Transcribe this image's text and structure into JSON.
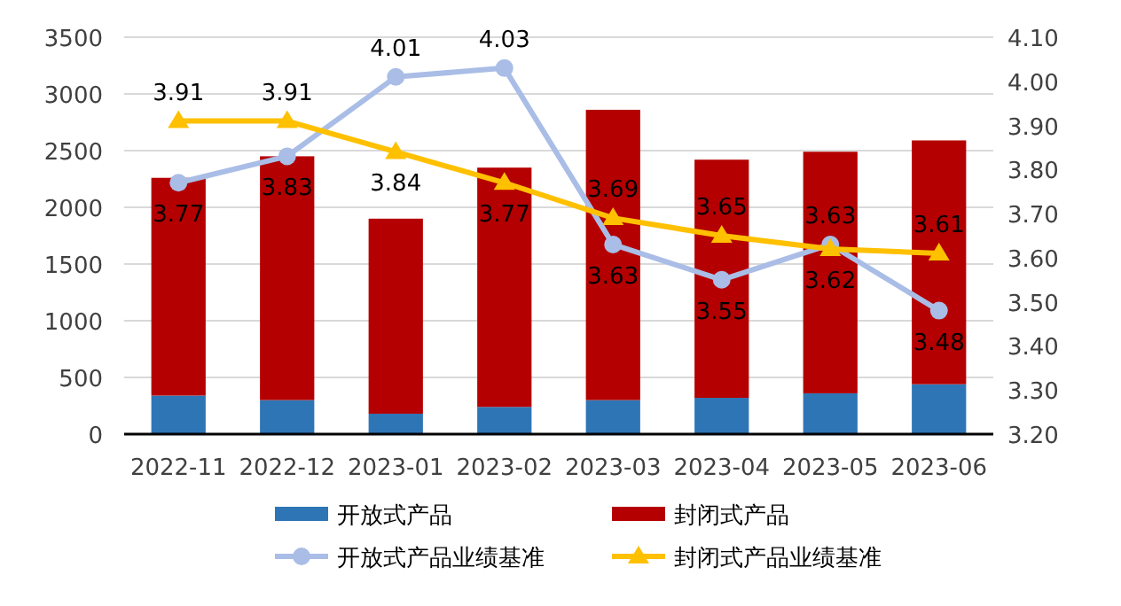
{
  "chart_data": {
    "type": "bar",
    "stacked": true,
    "categories": [
      "2022-11",
      "2022-12",
      "2023-01",
      "2023-02",
      "2023-03",
      "2023-04",
      "2023-05",
      "2023-06"
    ],
    "series": [
      {
        "name": "开放式产品",
        "color": "#2e75b6",
        "values": [
          340,
          300,
          180,
          240,
          300,
          320,
          360,
          440
        ]
      },
      {
        "name": "封闭式产品",
        "color": "#b40000",
        "values": [
          1920,
          2150,
          1720,
          2110,
          2560,
          2100,
          2130,
          2150
        ]
      },
      {
        "name": "开放式产品业绩基准",
        "type": "line",
        "axis": "y2",
        "marker": "circle",
        "color": "#a9bde6",
        "values": [
          3.77,
          3.83,
          4.01,
          4.03,
          3.63,
          3.55,
          3.63,
          3.48
        ],
        "value_labels": [
          "3.77",
          "3.83",
          "4.01",
          "4.03",
          "3.63",
          "3.55",
          "3.63",
          "3.48"
        ]
      },
      {
        "name": "封闭式产品业绩基准",
        "type": "line",
        "axis": "y2",
        "marker": "triangle",
        "color": "#ffc000",
        "values": [
          3.91,
          3.91,
          3.84,
          3.77,
          3.69,
          3.65,
          3.62,
          3.61
        ],
        "value_labels": [
          "3.91",
          "3.91",
          "3.84",
          "3.77",
          "3.69",
          "3.65",
          "3.62",
          "3.61"
        ]
      }
    ],
    "ylim": [
      0,
      3500
    ],
    "yticks": [
      0,
      500,
      1000,
      1500,
      2000,
      2500,
      3000,
      3500
    ],
    "y2lim": [
      3.2,
      4.1
    ],
    "y2ticks": [
      {
        "value": 3.2,
        "label": "3.20"
      },
      {
        "value": 3.3,
        "label": "3.30"
      },
      {
        "value": 3.4,
        "label": "3.40"
      },
      {
        "value": 3.5,
        "label": "3.50"
      },
      {
        "value": 3.6,
        "label": "3.60"
      },
      {
        "value": 3.7,
        "label": "3.70"
      },
      {
        "value": 3.8,
        "label": "3.80"
      },
      {
        "value": 3.9,
        "label": "3.90"
      },
      {
        "value": 4.0,
        "label": "4.00"
      },
      {
        "value": 4.1,
        "label": "4.10"
      }
    ],
    "grid": "y",
    "legend": "bottom",
    "line_style": "solid"
  }
}
